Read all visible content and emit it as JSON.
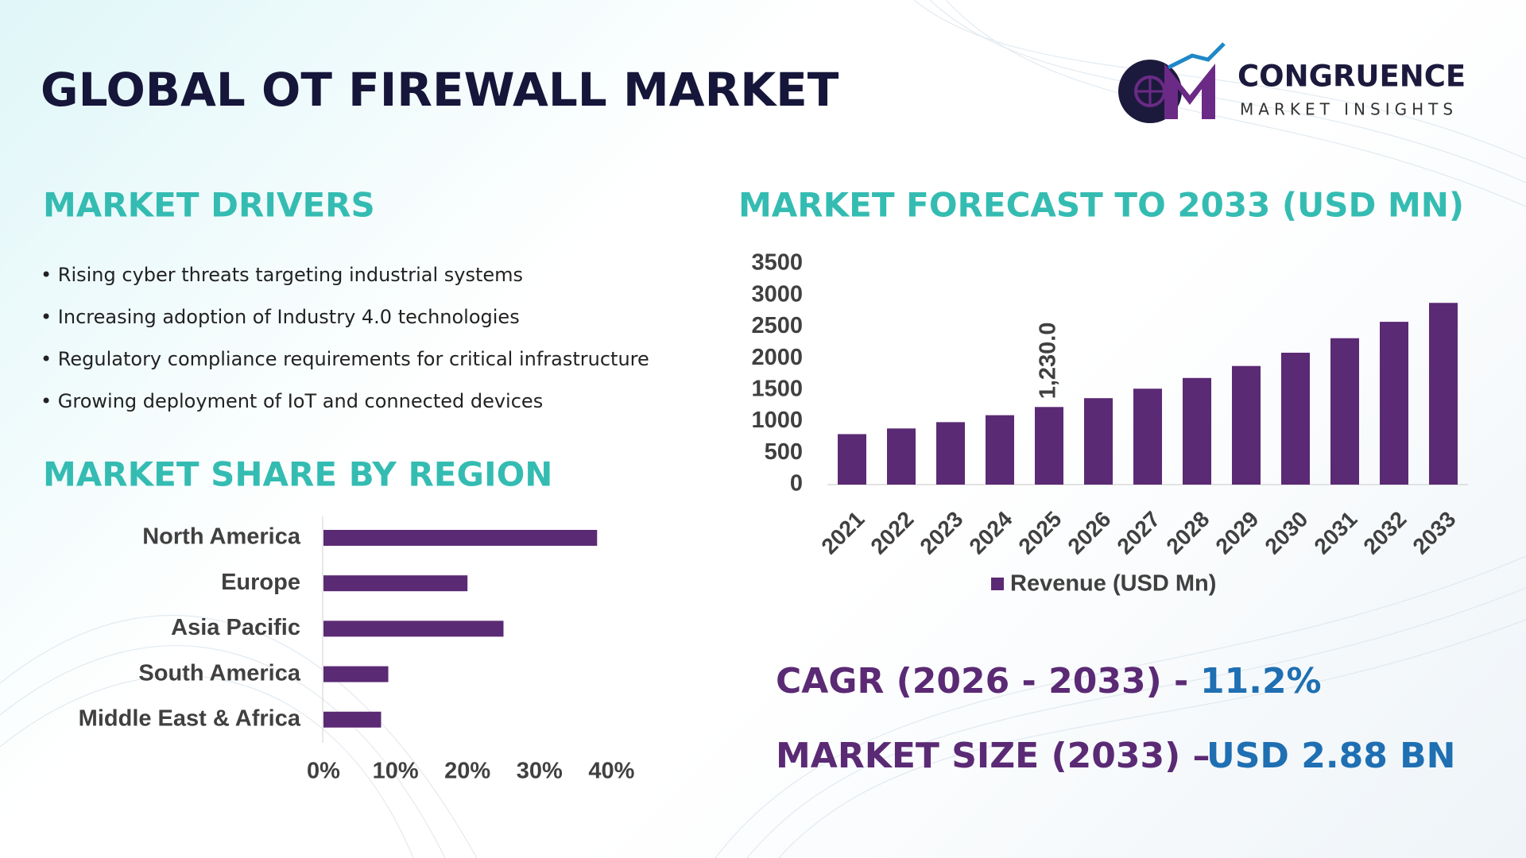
{
  "header": {
    "title": "GLOBAL OT FIREWALL MARKET"
  },
  "logo": {
    "name": "CONGRUENCE",
    "tagline": "MARKET INSIGHTS"
  },
  "drivers": {
    "title": "MARKET DRIVERS",
    "items": [
      "• Rising cyber threats targeting industrial systems",
      "• Increasing adoption of Industry 4.0 technologies",
      "• Regulatory compliance requirements for critical infrastructure",
      "• Growing deployment of IoT and connected devices"
    ]
  },
  "summary": {
    "cagr_label": "CAGR (2026 - 2033) -",
    "cagr_value": "11.2%",
    "size_label": "MARKET SIZE (2033) –",
    "size_value": "USD 2.88 BN"
  },
  "chart_data": [
    {
      "type": "bar",
      "title": "MARKET FORECAST TO 2033 (USD MN)",
      "categories": [
        "2021",
        "2022",
        "2023",
        "2024",
        "2025",
        "2026",
        "2027",
        "2028",
        "2029",
        "2030",
        "2031",
        "2032",
        "2033"
      ],
      "series": [
        {
          "name": "Revenue (USD Mn)",
          "color": "#5b2a74",
          "values": [
            800,
            890,
            990,
            1100,
            1230,
            1370,
            1520,
            1690,
            1880,
            2090,
            2320,
            2580,
            2880
          ],
          "value_labels": [
            null,
            null,
            null,
            null,
            "1,230.0",
            null,
            null,
            null,
            null,
            null,
            null,
            null,
            null
          ]
        }
      ],
      "ylim": [
        0,
        3500
      ],
      "yticks": [
        0,
        500,
        1000,
        1500,
        2000,
        2500,
        3000,
        3500
      ],
      "grid": false,
      "legend": "bottom"
    },
    {
      "type": "barh",
      "title": "MARKET SHARE BY REGION",
      "categories": [
        "North America",
        "Europe",
        "Asia Pacific",
        "South America",
        "Middle East & Africa"
      ],
      "values": [
        38,
        20,
        25,
        9,
        8
      ],
      "color": "#5b2a74",
      "xlim": [
        0,
        40
      ],
      "xticks": [
        {
          "value": 0,
          "label": "0%"
        },
        {
          "value": 10,
          "label": "10%"
        },
        {
          "value": 20,
          "label": "20%"
        },
        {
          "value": 30,
          "label": "30%"
        },
        {
          "value": 40,
          "label": "40%"
        }
      ],
      "grid": false
    }
  ]
}
